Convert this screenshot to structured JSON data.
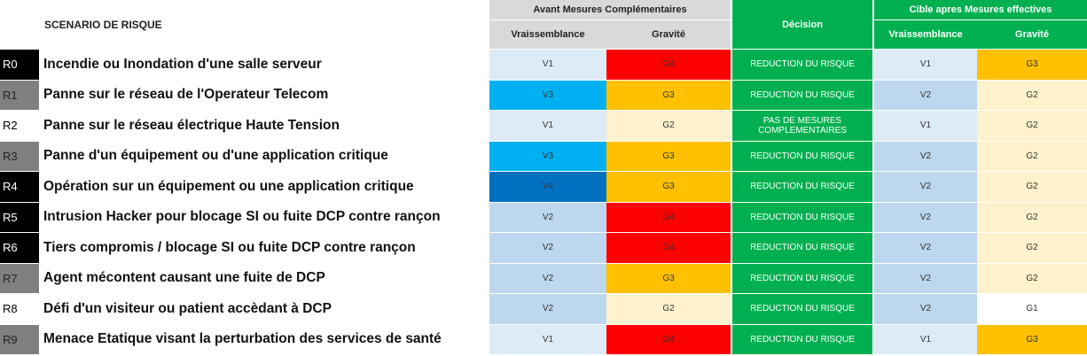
{
  "header": {
    "title": "SCENARIO DE RISQUE",
    "avant": "Avant Mesures Complémentaires",
    "decision": "Décision",
    "cible": "Cible apres Mesures effectives",
    "avant_v": "Vraissemblance",
    "avant_g": "Gravité",
    "cible_v": "Vraissemblance",
    "cible_g": "Gravité"
  },
  "rows": [
    {
      "id": "R0",
      "id_bg": "#000000",
      "id_fg": "#ffffff",
      "scenario": "Incendie ou Inondation d'une salle serveur",
      "cells": [
        {
          "text": "V1",
          "color": "#ddebf7"
        },
        {
          "text": "G4",
          "color": "#ff0000"
        },
        {
          "text": "REDUCTION DU RISQUE",
          "color": "#00b050"
        },
        {
          "text": "V1",
          "color": "#ddebf7"
        },
        {
          "text": "G3",
          "color": "#ffc000"
        }
      ]
    },
    {
      "id": "R1",
      "id_bg": "#808080",
      "id_fg": "#222222",
      "scenario": "Panne sur le réseau de l'Operateur Telecom",
      "cells": [
        {
          "text": "V3",
          "color": "#00b0f0"
        },
        {
          "text": "G3",
          "color": "#ffc000"
        },
        {
          "text": "REDUCTION DU RISQUE",
          "color": "#00b050"
        },
        {
          "text": "V2",
          "color": "#bdd7ee"
        },
        {
          "text": "G2",
          "color": "#fff2cc"
        }
      ]
    },
    {
      "id": "R2",
      "id_bg": "#ffffff",
      "id_fg": "#000000",
      "scenario": "Panne sur le réseau électrique Haute Tension",
      "cells": [
        {
          "text": "V1",
          "color": "#ddebf7"
        },
        {
          "text": "G2",
          "color": "#fff2cc"
        },
        {
          "text": "PAS DE MESURES COMPLEMENTAIRES",
          "color": "#00b050"
        },
        {
          "text": "V1",
          "color": "#ddebf7"
        },
        {
          "text": "G2",
          "color": "#fff2cc"
        }
      ]
    },
    {
      "id": "R3",
      "id_bg": "#808080",
      "id_fg": "#222222",
      "scenario": "Panne d'un équipement ou d'une application critique",
      "cells": [
        {
          "text": "V3",
          "color": "#00b0f0"
        },
        {
          "text": "G3",
          "color": "#ffc000"
        },
        {
          "text": "REDUCTION DU RISQUE",
          "color": "#00b050"
        },
        {
          "text": "V2",
          "color": "#bdd7ee"
        },
        {
          "text": "G2",
          "color": "#fff2cc"
        }
      ]
    },
    {
      "id": "R4",
      "id_bg": "#000000",
      "id_fg": "#ffffff",
      "scenario": "Opération sur un équipement ou une application critique",
      "cells": [
        {
          "text": "V4",
          "color": "#0070c0"
        },
        {
          "text": "G3",
          "color": "#ffc000"
        },
        {
          "text": "REDUCTION DU RISQUE",
          "color": "#00b050"
        },
        {
          "text": "V2",
          "color": "#bdd7ee"
        },
        {
          "text": "G2",
          "color": "#fff2cc"
        }
      ]
    },
    {
      "id": "R5",
      "id_bg": "#000000",
      "id_fg": "#ffffff",
      "scenario": "Intrusion Hacker pour blocage SI ou fuite DCP contre rançon",
      "cells": [
        {
          "text": "V2",
          "color": "#bdd7ee"
        },
        {
          "text": "G4",
          "color": "#ff0000"
        },
        {
          "text": "REDUCTION DU RISQUE",
          "color": "#00b050"
        },
        {
          "text": "V2",
          "color": "#bdd7ee"
        },
        {
          "text": "G2",
          "color": "#fff2cc"
        }
      ]
    },
    {
      "id": "R6",
      "id_bg": "#000000",
      "id_fg": "#ffffff",
      "scenario": "Tiers compromis / blocage SI ou fuite DCP contre rançon",
      "cells": [
        {
          "text": "V2",
          "color": "#bdd7ee"
        },
        {
          "text": "G4",
          "color": "#ff0000"
        },
        {
          "text": "REDUCTION DU RISQUE",
          "color": "#00b050"
        },
        {
          "text": "V2",
          "color": "#bdd7ee"
        },
        {
          "text": "G2",
          "color": "#fff2cc"
        }
      ]
    },
    {
      "id": "R7",
      "id_bg": "#808080",
      "id_fg": "#222222",
      "scenario": "Agent mécontent causant une fuite de DCP",
      "cells": [
        {
          "text": "V2",
          "color": "#bdd7ee"
        },
        {
          "text": "G3",
          "color": "#ffc000"
        },
        {
          "text": "REDUCTION DU RISQUE",
          "color": "#00b050"
        },
        {
          "text": "V2",
          "color": "#bdd7ee"
        },
        {
          "text": "G2",
          "color": "#fff2cc"
        }
      ]
    },
    {
      "id": "R8",
      "id_bg": "#ffffff",
      "id_fg": "#000000",
      "scenario": "Défi d'un visiteur ou patient accèdant à DCP",
      "cells": [
        {
          "text": "V2",
          "color": "#bdd7ee"
        },
        {
          "text": "G2",
          "color": "#fff2cc"
        },
        {
          "text": "REDUCTION DU RISQUE",
          "color": "#00b050"
        },
        {
          "text": "V2",
          "color": "#bdd7ee"
        },
        {
          "text": "G1",
          "color": "#ffffff"
        }
      ]
    },
    {
      "id": "R9",
      "id_bg": "#808080",
      "id_fg": "#222222",
      "scenario": "Menace Etatique visant la perturbation des services de santé",
      "cells": [
        {
          "text": "V1",
          "color": "#ddebf7"
        },
        {
          "text": "G4",
          "color": "#ff0000"
        },
        {
          "text": "REDUCTION DU RISQUE",
          "color": "#00b050"
        },
        {
          "text": "V1",
          "color": "#ddebf7"
        },
        {
          "text": "G3",
          "color": "#ffc000"
        }
      ]
    }
  ]
}
